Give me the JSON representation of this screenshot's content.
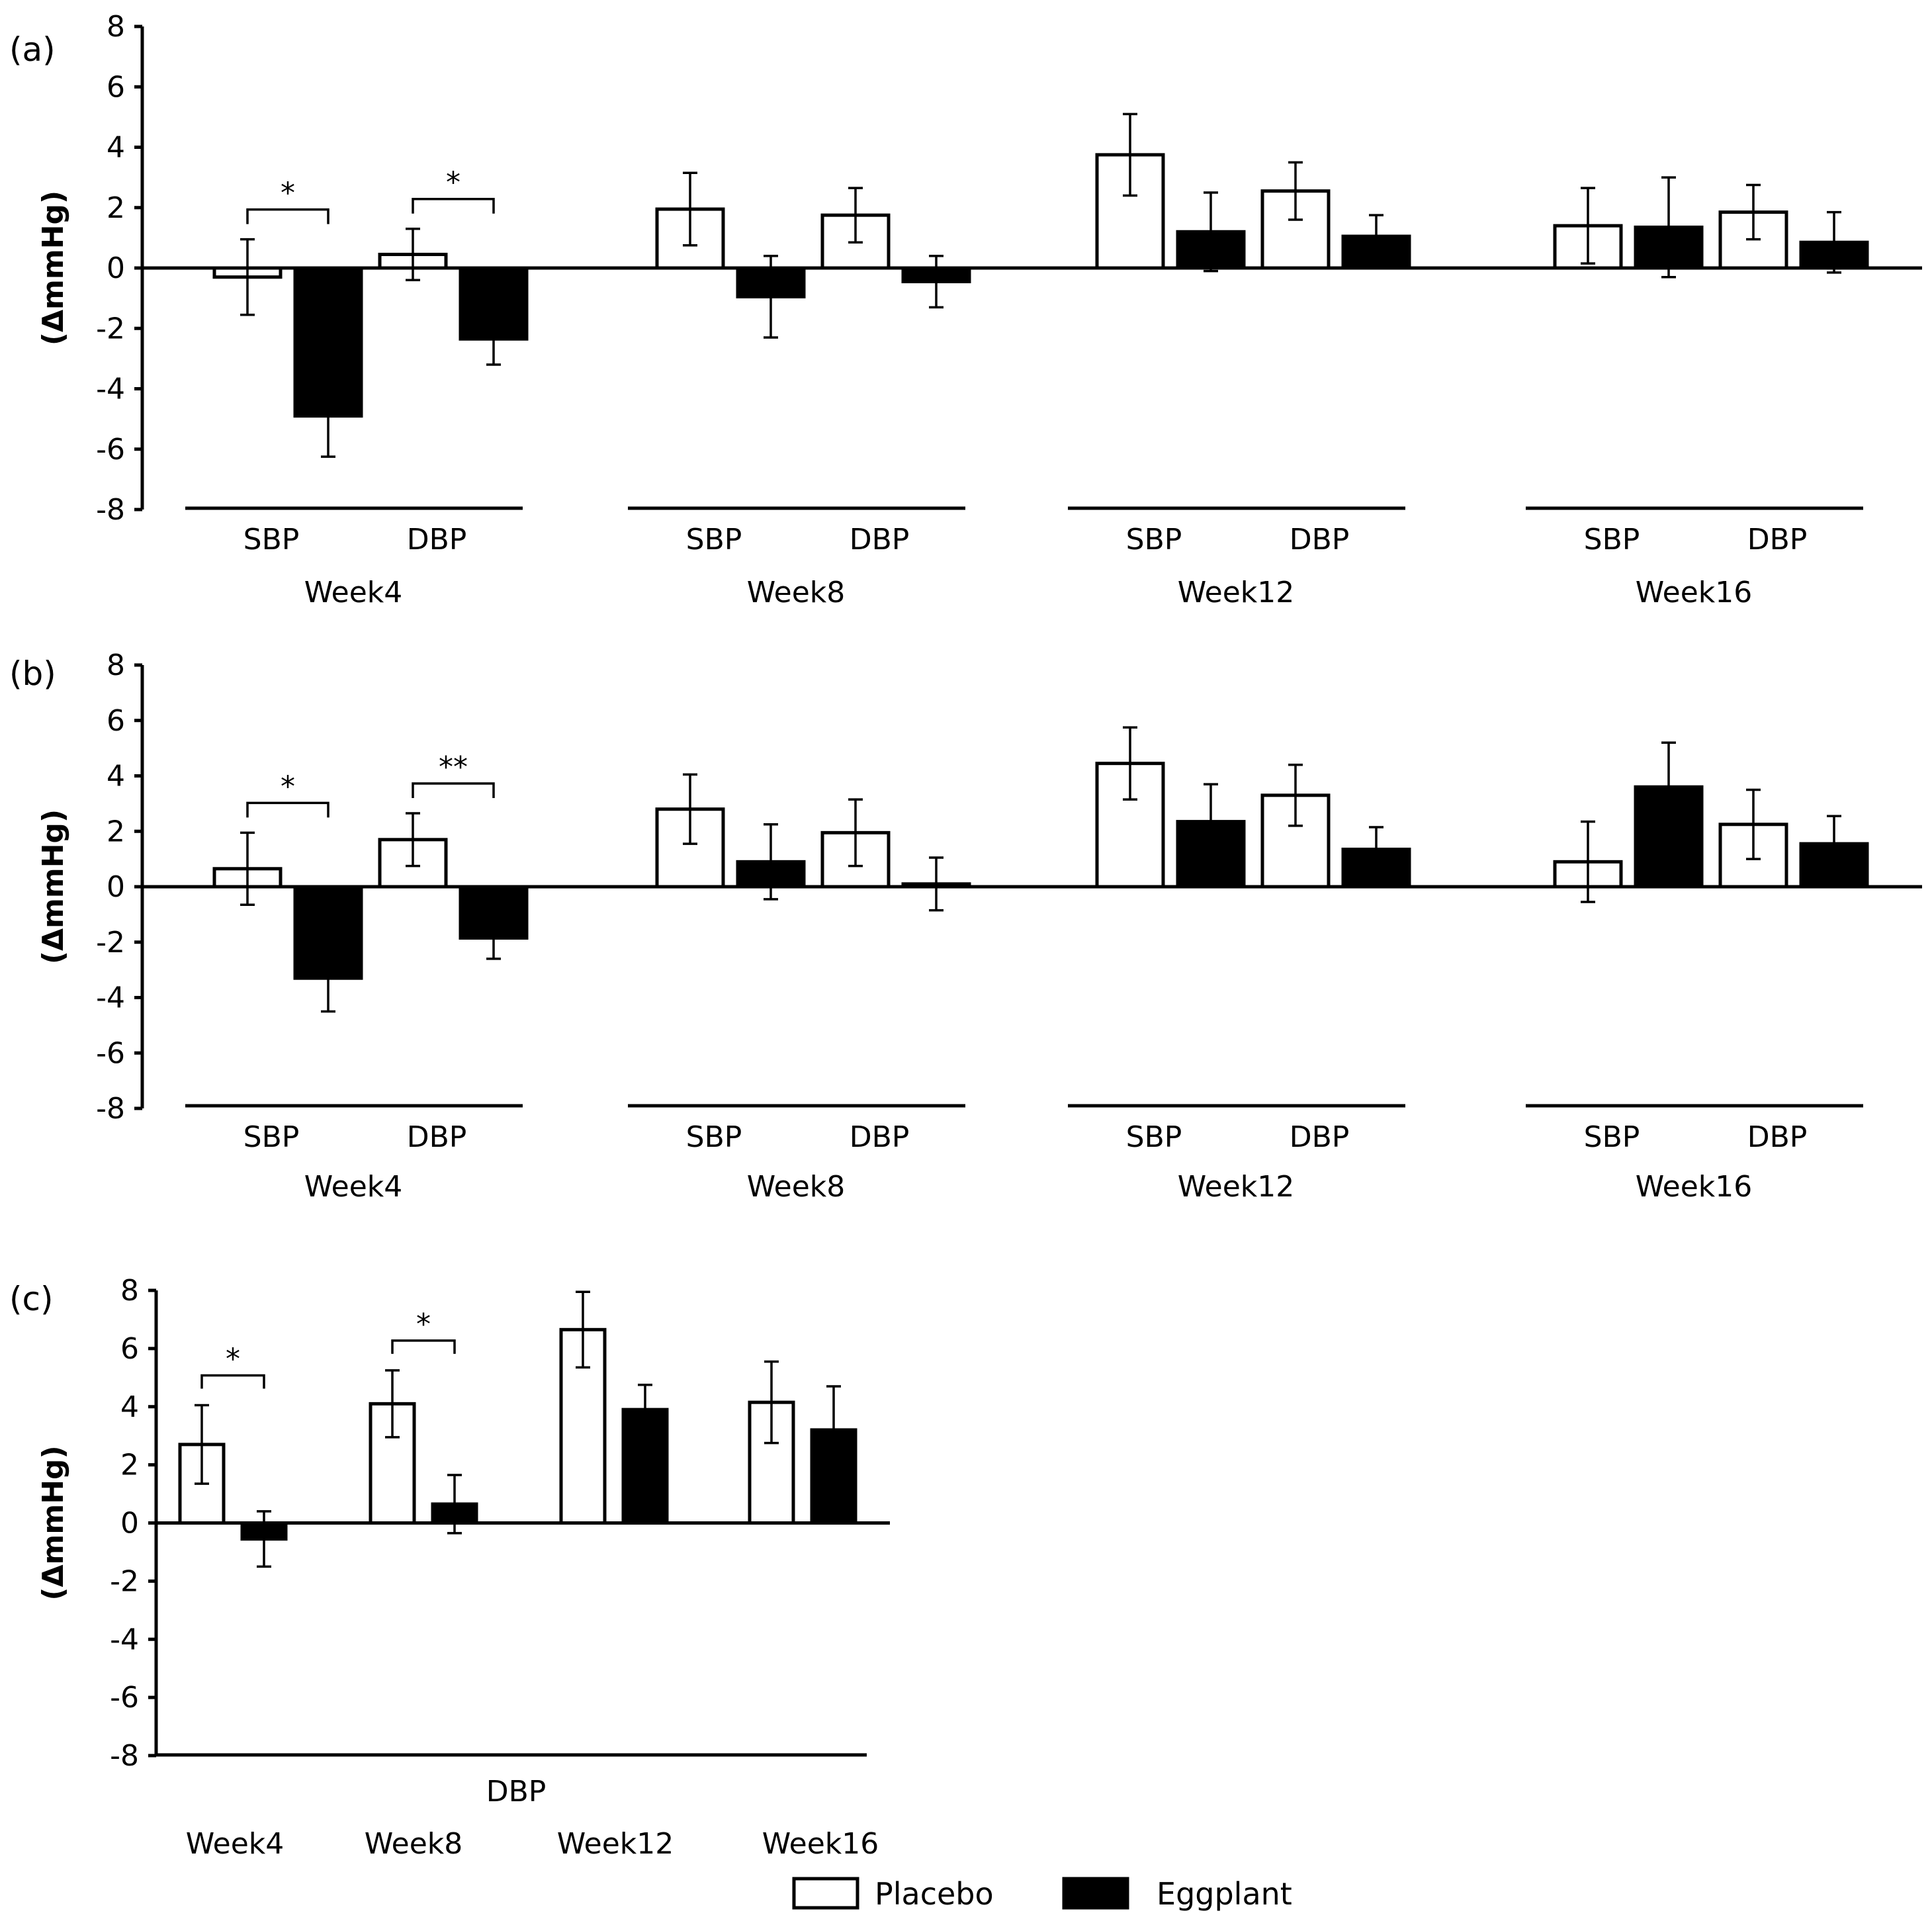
{
  "legend": [
    {
      "label": "Placebo",
      "fill": "#ffffff"
    },
    {
      "label": "Eggplant",
      "fill": "#000000"
    }
  ],
  "colors": {
    "placebo": "#ffffff",
    "eggplant": "#000000",
    "stroke": "#000000"
  },
  "chart_data": [
    {
      "type": "bar",
      "panel_label": "(a)",
      "ylabel": "(ΔmmHg)",
      "ylim": [
        -8,
        8
      ],
      "yticks": [
        "8",
        "6",
        "4",
        "2",
        "0",
        "-2",
        "-4",
        "-6",
        "-8"
      ],
      "groups": [
        {
          "week": "Week4",
          "measures": [
            {
              "label": "SBP",
              "placebo": -0.3,
              "placebo_err": 1.25,
              "eggplant": -4.9,
              "eggplant_err": 1.35,
              "sig": "*"
            },
            {
              "label": "DBP",
              "placebo": 0.45,
              "placebo_err": 0.85,
              "eggplant": -2.35,
              "eggplant_err": 0.85,
              "sig": "*"
            }
          ]
        },
        {
          "week": "Week8",
          "measures": [
            {
              "label": "SBP",
              "placebo": 1.95,
              "placebo_err": 1.2,
              "eggplant": -0.95,
              "eggplant_err": 1.35,
              "sig": ""
            },
            {
              "label": "DBP",
              "placebo": 1.75,
              "placebo_err": 0.9,
              "eggplant": -0.45,
              "eggplant_err": 0.85,
              "sig": ""
            }
          ]
        },
        {
          "week": "Week12",
          "measures": [
            {
              "label": "SBP",
              "placebo": 3.75,
              "placebo_err": 1.35,
              "eggplant": 1.2,
              "eggplant_err": 1.3,
              "sig": ""
            },
            {
              "label": "DBP",
              "placebo": 2.55,
              "placebo_err": 0.95,
              "eggplant": 1.05,
              "eggplant_err": 0.7,
              "sig": ""
            }
          ]
        },
        {
          "week": "Week16",
          "measures": [
            {
              "label": "SBP",
              "placebo": 1.4,
              "placebo_err": 1.25,
              "eggplant": 1.35,
              "eggplant_err": 1.65,
              "sig": ""
            },
            {
              "label": "DBP",
              "placebo": 1.85,
              "placebo_err": 0.9,
              "eggplant": 0.85,
              "eggplant_err": 1.0,
              "sig": ""
            }
          ]
        }
      ]
    },
    {
      "type": "bar",
      "panel_label": "(b)",
      "ylabel": "(ΔmmHg)",
      "ylim": [
        -8,
        8
      ],
      "yticks": [
        "8",
        "6",
        "4",
        "2",
        "0",
        "-2",
        "-4",
        "-6",
        "-8"
      ],
      "groups": [
        {
          "week": "Week4",
          "measures": [
            {
              "label": "SBP",
              "placebo": 0.65,
              "placebo_err": 1.3,
              "eggplant": -3.3,
              "eggplant_err": 1.2,
              "sig": "*"
            },
            {
              "label": "DBP",
              "placebo": 1.7,
              "placebo_err": 0.95,
              "eggplant": -1.85,
              "eggplant_err": 0.75,
              "sig": "**"
            }
          ]
        },
        {
          "week": "Week8",
          "measures": [
            {
              "label": "SBP",
              "placebo": 2.8,
              "placebo_err": 1.25,
              "eggplant": 0.9,
              "eggplant_err": 1.35,
              "sig": ""
            },
            {
              "label": "DBP",
              "placebo": 1.95,
              "placebo_err": 1.2,
              "eggplant": 0.1,
              "eggplant_err": 0.95,
              "sig": ""
            }
          ]
        },
        {
          "week": "Week12",
          "measures": [
            {
              "label": "SBP",
              "placebo": 4.45,
              "placebo_err": 1.3,
              "eggplant": 2.35,
              "eggplant_err": 1.35,
              "sig": ""
            },
            {
              "label": "DBP",
              "placebo": 3.3,
              "placebo_err": 1.1,
              "eggplant": 1.35,
              "eggplant_err": 0.8,
              "sig": ""
            }
          ]
        },
        {
          "week": "Week16",
          "measures": [
            {
              "label": "SBP",
              "placebo": 0.9,
              "placebo_err": 1.45,
              "eggplant": 3.6,
              "eggplant_err": 1.6,
              "sig": ""
            },
            {
              "label": "DBP",
              "placebo": 2.25,
              "placebo_err": 1.25,
              "eggplant": 1.55,
              "eggplant_err": 1.0,
              "sig": ""
            }
          ]
        }
      ]
    },
    {
      "type": "bar",
      "panel_label": "(c)",
      "ylabel": "(ΔmmHg)",
      "ylim": [
        -8,
        8
      ],
      "yticks": [
        "8",
        "6",
        "4",
        "2",
        "0",
        "-2",
        "-4",
        "-6",
        "-8"
      ],
      "measure_label": "DBP",
      "groups": [
        {
          "week": "Week4",
          "placebo": 2.7,
          "placebo_err": 1.35,
          "eggplant": -0.55,
          "eggplant_err": 0.95,
          "sig": "*"
        },
        {
          "week": "Week8",
          "placebo": 4.1,
          "placebo_err": 1.15,
          "eggplant": 0.65,
          "eggplant_err": 1.0,
          "sig": "*"
        },
        {
          "week": "Week12",
          "placebo": 6.65,
          "placebo_err": 1.3,
          "eggplant": 3.9,
          "eggplant_err": 0.85,
          "sig": ""
        },
        {
          "week": "Week16",
          "placebo": 4.15,
          "placebo_err": 1.4,
          "eggplant": 3.2,
          "eggplant_err": 1.5,
          "sig": ""
        }
      ]
    }
  ]
}
